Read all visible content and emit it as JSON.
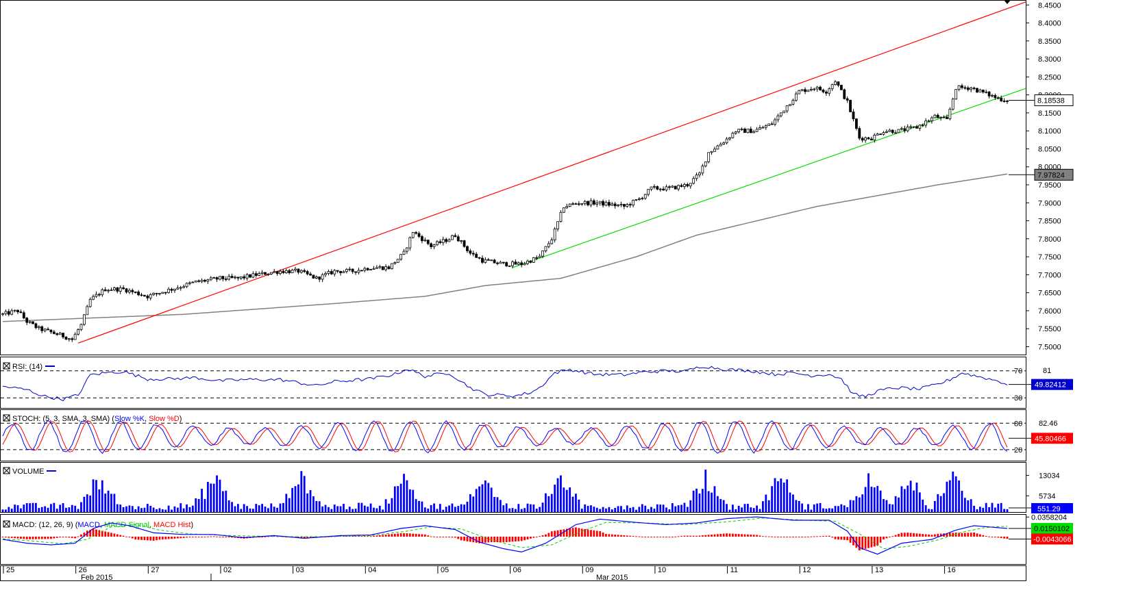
{
  "colors": {
    "candle": "#000000",
    "sma": "#808080",
    "channel_upper": "#ff0000",
    "channel_lower": "#00dd00",
    "rsi": "#0000cc",
    "stoch_k": "#0000ff",
    "stoch_d": "#ff0000",
    "volume": "#0000ff",
    "macd": "#0000ff",
    "macd_signal": "#00cc00",
    "macd_hist": "#ff0000"
  },
  "chart_data": [
    {
      "type": "candlestick",
      "panel": "price",
      "title": "",
      "y_range": [
        7.48,
        8.46
      ],
      "y_ticks": [
        "8.4500",
        "8.4000",
        "8.3500",
        "8.3000",
        "8.2500",
        "8.2000",
        "8.1500",
        "8.1000",
        "8.0500",
        "8.0000",
        "7.9500",
        "7.9000",
        "7.8500",
        "7.8000",
        "7.7500",
        "7.7000",
        "7.6500",
        "7.6000",
        "7.5500",
        "7.5000"
      ],
      "last_price_label": "8.18538",
      "sma_label": "7.97824",
      "x_labels_day": [
        "25",
        "26",
        "27",
        "02",
        "03",
        "04",
        "05",
        "06",
        "09",
        "10",
        "11",
        "12",
        "13",
        "16"
      ],
      "x_labels_month": [
        "Feb 2015",
        "Mar 2015"
      ],
      "close_keypoints": [
        [
          0,
          7.59
        ],
        [
          5,
          7.6
        ],
        [
          8,
          7.57
        ],
        [
          12,
          7.55
        ],
        [
          20,
          7.53
        ],
        [
          23,
          7.52
        ],
        [
          26,
          7.56
        ],
        [
          29,
          7.63
        ],
        [
          34,
          7.66
        ],
        [
          40,
          7.66
        ],
        [
          48,
          7.64
        ],
        [
          56,
          7.66
        ],
        [
          64,
          7.68
        ],
        [
          72,
          7.69
        ],
        [
          78,
          7.69
        ],
        [
          84,
          7.7
        ],
        [
          92,
          7.71
        ],
        [
          98,
          7.71
        ],
        [
          104,
          7.69
        ],
        [
          110,
          7.71
        ],
        [
          116,
          7.71
        ],
        [
          122,
          7.72
        ],
        [
          128,
          7.72
        ],
        [
          133,
          7.76
        ],
        [
          136,
          7.82
        ],
        [
          142,
          7.78
        ],
        [
          148,
          7.8
        ],
        [
          150,
          7.81
        ],
        [
          155,
          7.76
        ],
        [
          159,
          7.74
        ],
        [
          166,
          7.73
        ],
        [
          172,
          7.73
        ],
        [
          178,
          7.75
        ],
        [
          182,
          7.8
        ],
        [
          186,
          7.89
        ],
        [
          191,
          7.9
        ],
        [
          197,
          7.9
        ],
        [
          206,
          7.89
        ],
        [
          211,
          7.91
        ],
        [
          215,
          7.94
        ],
        [
          221,
          7.94
        ],
        [
          227,
          7.95
        ],
        [
          231,
          7.98
        ],
        [
          234,
          8.04
        ],
        [
          239,
          8.07
        ],
        [
          243,
          8.1
        ],
        [
          249,
          8.1
        ],
        [
          255,
          8.12
        ],
        [
          260,
          8.17
        ],
        [
          264,
          8.21
        ],
        [
          269,
          8.22
        ],
        [
          273,
          8.21
        ],
        [
          276,
          8.24
        ],
        [
          280,
          8.18
        ],
        [
          284,
          8.08
        ],
        [
          288,
          8.08
        ],
        [
          292,
          8.1
        ],
        [
          297,
          8.1
        ],
        [
          303,
          8.11
        ],
        [
          309,
          8.14
        ],
        [
          313,
          8.13
        ],
        [
          316,
          8.22
        ],
        [
          321,
          8.22
        ],
        [
          327,
          8.2
        ],
        [
          330,
          8.19
        ],
        [
          333,
          8.185
        ]
      ],
      "channel_upper": {
        "from": [
          25,
          7.51
        ],
        "to": [
          333,
          8.44
        ]
      },
      "channel_lower": {
        "from": [
          169,
          7.72
        ],
        "to": [
          333,
          8.2
        ]
      },
      "sma": [
        [
          0,
          7.57
        ],
        [
          60,
          7.59
        ],
        [
          110,
          7.62
        ],
        [
          140,
          7.64
        ],
        [
          160,
          7.67
        ],
        [
          185,
          7.69
        ],
        [
          210,
          7.75
        ],
        [
          230,
          7.81
        ],
        [
          250,
          7.85
        ],
        [
          270,
          7.89
        ],
        [
          290,
          7.92
        ],
        [
          310,
          7.95
        ],
        [
          333,
          7.98
        ]
      ]
    },
    {
      "type": "line",
      "panel": "rsi",
      "title": "RSI: (14)",
      "y_range": [
        15,
        90
      ],
      "levels": [
        70,
        30
      ],
      "scale_label": "81",
      "current_label": "49.82412",
      "keypoints": [
        [
          0,
          47
        ],
        [
          8,
          42
        ],
        [
          14,
          32
        ],
        [
          20,
          28
        ],
        [
          25,
          34
        ],
        [
          29,
          64
        ],
        [
          34,
          67
        ],
        [
          40,
          69
        ],
        [
          48,
          58
        ],
        [
          56,
          58
        ],
        [
          64,
          60
        ],
        [
          72,
          55
        ],
        [
          80,
          57
        ],
        [
          92,
          57
        ],
        [
          104,
          48
        ],
        [
          110,
          54
        ],
        [
          122,
          58
        ],
        [
          130,
          65
        ],
        [
          134,
          73
        ],
        [
          140,
          62
        ],
        [
          148,
          67
        ],
        [
          155,
          45
        ],
        [
          160,
          35
        ],
        [
          170,
          33
        ],
        [
          175,
          38
        ],
        [
          178,
          45
        ],
        [
          183,
          67
        ],
        [
          188,
          72
        ],
        [
          196,
          65
        ],
        [
          206,
          64
        ],
        [
          212,
          68
        ],
        [
          220,
          70
        ],
        [
          226,
          69
        ],
        [
          232,
          77
        ],
        [
          240,
          72
        ],
        [
          248,
          70
        ],
        [
          256,
          65
        ],
        [
          262,
          67
        ],
        [
          268,
          63
        ],
        [
          274,
          65
        ],
        [
          278,
          58
        ],
        [
          282,
          35
        ],
        [
          286,
          32
        ],
        [
          290,
          40
        ],
        [
          296,
          45
        ],
        [
          304,
          43
        ],
        [
          310,
          50
        ],
        [
          314,
          57
        ],
        [
          318,
          67
        ],
        [
          324,
          61
        ],
        [
          330,
          55
        ],
        [
          333,
          50
        ]
      ]
    },
    {
      "type": "line",
      "panel": "stochastic",
      "title": "STOCH: (5, 3, SMA, 3, SMA)",
      "series_names": [
        "Slow %K",
        "Slow %D"
      ],
      "y_range": [
        -5,
        110
      ],
      "levels": [
        80,
        20
      ],
      "scale_label": "82.46",
      "current_label": "45.80466",
      "period": 12,
      "phase_shift_d": 1.4,
      "center": 50,
      "amplitude": 36
    },
    {
      "type": "bar",
      "panel": "volume",
      "title": "VOLUME",
      "y_range": [
        0,
        17500
      ],
      "y_ticks": [
        "13034",
        "5734"
      ],
      "current_label": "551.29",
      "spike_positions": [
        32,
        70,
        99,
        133,
        160,
        185,
        233,
        258,
        287,
        300,
        315
      ]
    },
    {
      "type": "line",
      "panel": "macd",
      "title": "MACD: (12, 26, 9)",
      "series_names": [
        "MACD",
        "MACD Signal",
        "MACD Hist"
      ],
      "y_range": [
        -0.05,
        0.04
      ],
      "y_ticks": [
        "0.0358204"
      ],
      "current_macd_label": "0.0150102",
      "current_hist_label": "-0.0043066",
      "macd_keypoints": [
        [
          0,
          -0.005
        ],
        [
          8,
          -0.012
        ],
        [
          16,
          -0.015
        ],
        [
          24,
          -0.012
        ],
        [
          30,
          0.015
        ],
        [
          36,
          0.025
        ],
        [
          42,
          0.02
        ],
        [
          50,
          0.007
        ],
        [
          60,
          0.004
        ],
        [
          70,
          0.004
        ],
        [
          80,
          -0.002
        ],
        [
          90,
          0.002
        ],
        [
          100,
          -0.003
        ],
        [
          112,
          0.002
        ],
        [
          122,
          0.003
        ],
        [
          132,
          0.015
        ],
        [
          140,
          0.02
        ],
        [
          150,
          0.013
        ],
        [
          158,
          -0.01
        ],
        [
          166,
          -0.022
        ],
        [
          172,
          -0.028
        ],
        [
          180,
          -0.012
        ],
        [
          190,
          0.022
        ],
        [
          198,
          0.032
        ],
        [
          210,
          0.026
        ],
        [
          220,
          0.022
        ],
        [
          230,
          0.025
        ],
        [
          240,
          0.033
        ],
        [
          250,
          0.036
        ],
        [
          262,
          0.03
        ],
        [
          274,
          0.03
        ],
        [
          280,
          0.01
        ],
        [
          284,
          -0.02
        ],
        [
          290,
          -0.032
        ],
        [
          298,
          -0.012
        ],
        [
          308,
          -0.005
        ],
        [
          316,
          0.012
        ],
        [
          322,
          0.02
        ],
        [
          333,
          0.015
        ]
      ],
      "signal_keypoints": [
        [
          0,
          -0.004
        ],
        [
          10,
          -0.008
        ],
        [
          20,
          -0.013
        ],
        [
          28,
          -0.005
        ],
        [
          36,
          0.018
        ],
        [
          44,
          0.022
        ],
        [
          52,
          0.012
        ],
        [
          62,
          0.005
        ],
        [
          76,
          0.002
        ],
        [
          92,
          0.0
        ],
        [
          108,
          0.0
        ],
        [
          122,
          0.002
        ],
        [
          134,
          0.01
        ],
        [
          142,
          0.018
        ],
        [
          152,
          0.014
        ],
        [
          162,
          -0.006
        ],
        [
          172,
          -0.02
        ],
        [
          182,
          -0.015
        ],
        [
          192,
          0.01
        ],
        [
          200,
          0.026
        ],
        [
          212,
          0.025
        ],
        [
          226,
          0.022
        ],
        [
          240,
          0.027
        ],
        [
          252,
          0.034
        ],
        [
          266,
          0.03
        ],
        [
          276,
          0.028
        ],
        [
          284,
          0.005
        ],
        [
          292,
          -0.022
        ],
        [
          300,
          -0.018
        ],
        [
          310,
          -0.006
        ],
        [
          318,
          0.008
        ],
        [
          326,
          0.017
        ],
        [
          333,
          0.019
        ]
      ]
    }
  ]
}
